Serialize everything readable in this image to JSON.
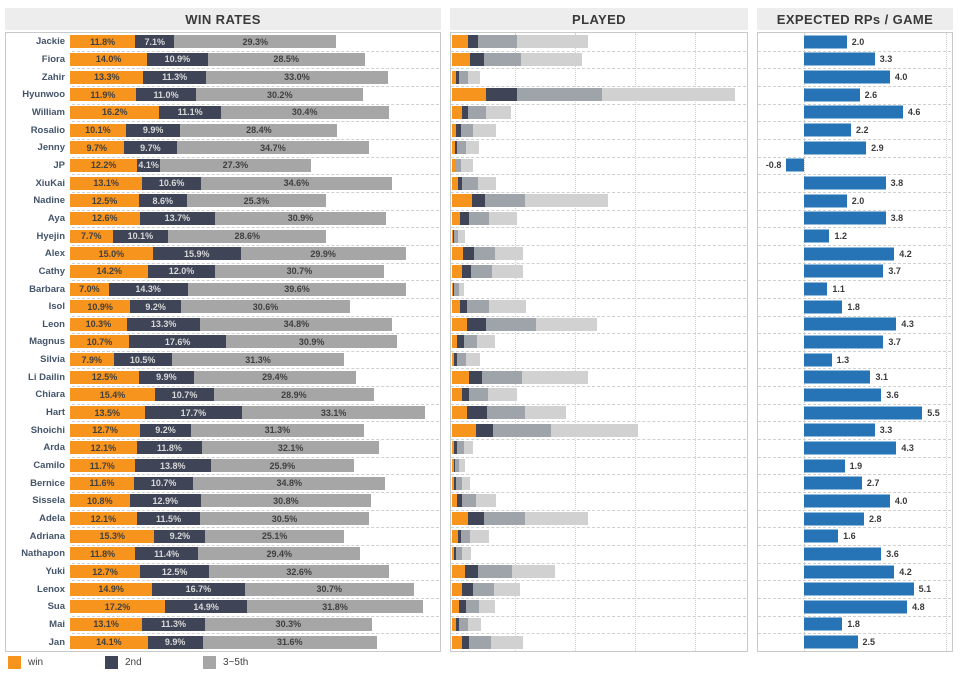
{
  "titles": {
    "win_rates": "WIN RATES",
    "played": "PLAYED",
    "rp": "EXPECTED RPs / GAME"
  },
  "legend": [
    {
      "label": "win",
      "color_key": "win"
    },
    {
      "label": "2nd",
      "color_key": "second"
    },
    {
      "label": "3~5th",
      "color_key": "r3to5"
    }
  ],
  "colors": {
    "win": "#F7941D",
    "second": "#3F4456",
    "r3to5": "#A6A6A6",
    "played_r3to5": "#9EA4A9",
    "played_rest": "#D1D1D1",
    "rp_bar": "#2674B5",
    "label_dark": "#404040",
    "label_on_dark": "#D9D9D9"
  },
  "chart_data": {
    "type": "bar",
    "orientation": "horizontal",
    "panels": [
      {
        "title": "WIN RATES",
        "stacked": true,
        "series": [
          "win",
          "2nd",
          "3~5th"
        ],
        "unit": "%",
        "xlim": [
          0,
          67
        ],
        "value_labels": true
      },
      {
        "title": "PLAYED",
        "stacked": true,
        "series": [
          "win",
          "2nd",
          "3~5th",
          "rest"
        ],
        "note": "axis unlabeled; totals estimated as percent of plot width; segments proportional to win/2nd/3~5th/rest shares",
        "gridlines_pct": [
          21.6,
          41.9,
          62.2,
          82.4
        ]
      },
      {
        "title": "EXPECTED RPs / GAME",
        "xlim": [
          -2.1,
          6.6
        ],
        "baseline_pct": 23.5,
        "unit_pct": 11.12,
        "value_labels": true
      }
    ],
    "rows": [
      {
        "name": "Jackie",
        "win": 11.8,
        "second": 7.1,
        "r3to5": 29.3,
        "played_rel": 46,
        "rp": 2.0
      },
      {
        "name": "Fiora",
        "win": 14.0,
        "second": 10.9,
        "r3to5": 28.5,
        "played_rel": 44,
        "rp": 3.3
      },
      {
        "name": "Zahir",
        "win": 13.3,
        "second": 11.3,
        "r3to5": 33.0,
        "played_rel": 9.5,
        "rp": 4.0
      },
      {
        "name": "Hyunwoo",
        "win": 11.9,
        "second": 11.0,
        "r3to5": 30.2,
        "played_rel": 96,
        "rp": 2.6
      },
      {
        "name": "William",
        "win": 16.2,
        "second": 11.1,
        "r3to5": 30.4,
        "played_rel": 20,
        "rp": 4.6
      },
      {
        "name": "Rosalio",
        "win": 10.1,
        "second": 9.9,
        "r3to5": 28.4,
        "played_rel": 15,
        "rp": 2.2
      },
      {
        "name": "Jenny",
        "win": 9.7,
        "second": 9.7,
        "r3to5": 34.7,
        "played_rel": 9,
        "rp": 2.9
      },
      {
        "name": "JP",
        "win": 12.2,
        "second": 4.1,
        "r3to5": 27.3,
        "played_rel": 7,
        "rp": -0.8
      },
      {
        "name": "XiuKai",
        "win": 13.1,
        "second": 10.6,
        "r3to5": 34.6,
        "played_rel": 15,
        "rp": 3.8
      },
      {
        "name": "Nadine",
        "win": 12.5,
        "second": 8.6,
        "r3to5": 25.3,
        "played_rel": 53,
        "rp": 2.0
      },
      {
        "name": "Aya",
        "win": 12.6,
        "second": 13.7,
        "r3to5": 30.9,
        "played_rel": 22,
        "rp": 3.8
      },
      {
        "name": "Hyejin",
        "win": 7.7,
        "second": 10.1,
        "r3to5": 28.6,
        "played_rel": 4.5,
        "rp": 1.2
      },
      {
        "name": "Alex",
        "win": 15.0,
        "second": 15.9,
        "r3to5": 29.9,
        "played_rel": 24,
        "rp": 4.2
      },
      {
        "name": "Cathy",
        "win": 14.2,
        "second": 12.0,
        "r3to5": 30.7,
        "played_rel": 24,
        "rp": 3.7
      },
      {
        "name": "Barbara",
        "win": 7.0,
        "second": 14.3,
        "r3to5": 39.6,
        "played_rel": 4,
        "rp": 1.1
      },
      {
        "name": "Isol",
        "win": 10.9,
        "second": 9.2,
        "r3to5": 30.6,
        "played_rel": 25,
        "rp": 1.8
      },
      {
        "name": "Leon",
        "win": 10.3,
        "second": 13.3,
        "r3to5": 34.8,
        "played_rel": 49,
        "rp": 4.3
      },
      {
        "name": "Magnus",
        "win": 10.7,
        "second": 17.6,
        "r3to5": 30.9,
        "played_rel": 14.5,
        "rp": 3.7
      },
      {
        "name": "Silvia",
        "win": 7.9,
        "second": 10.5,
        "r3to5": 31.3,
        "played_rel": 9.5,
        "rp": 1.3
      },
      {
        "name": "Li Dailin",
        "win": 12.5,
        "second": 9.9,
        "r3to5": 29.4,
        "played_rel": 46,
        "rp": 3.1
      },
      {
        "name": "Chiara",
        "win": 15.4,
        "second": 10.7,
        "r3to5": 28.9,
        "played_rel": 22,
        "rp": 3.6
      },
      {
        "name": "Hart",
        "win": 13.5,
        "second": 17.7,
        "r3to5": 33.1,
        "played_rel": 38.5,
        "rp": 5.5
      },
      {
        "name": "Shoichi",
        "win": 12.7,
        "second": 9.2,
        "r3to5": 31.3,
        "played_rel": 63,
        "rp": 3.3
      },
      {
        "name": "Arda",
        "win": 12.1,
        "second": 11.8,
        "r3to5": 32.1,
        "played_rel": 7,
        "rp": 4.3
      },
      {
        "name": "Camilo",
        "win": 11.7,
        "second": 13.8,
        "r3to5": 25.9,
        "played_rel": 4.5,
        "rp": 1.9
      },
      {
        "name": "Bernice",
        "win": 11.6,
        "second": 10.7,
        "r3to5": 34.8,
        "played_rel": 6,
        "rp": 2.7
      },
      {
        "name": "Sissela",
        "win": 10.8,
        "second": 12.9,
        "r3to5": 30.8,
        "played_rel": 15,
        "rp": 4.0
      },
      {
        "name": "Adela",
        "win": 12.1,
        "second": 11.5,
        "r3to5": 30.5,
        "played_rel": 46,
        "rp": 2.8
      },
      {
        "name": "Adriana",
        "win": 15.3,
        "second": 9.2,
        "r3to5": 25.1,
        "played_rel": 12.5,
        "rp": 1.6
      },
      {
        "name": "Nathapon",
        "win": 11.8,
        "second": 11.4,
        "r3to5": 29.4,
        "played_rel": 6.5,
        "rp": 3.6
      },
      {
        "name": "Yuki",
        "win": 12.7,
        "second": 12.5,
        "r3to5": 32.6,
        "played_rel": 35,
        "rp": 4.2
      },
      {
        "name": "Lenox",
        "win": 14.9,
        "second": 16.7,
        "r3to5": 30.7,
        "played_rel": 23,
        "rp": 5.1
      },
      {
        "name": "Sua",
        "win": 17.2,
        "second": 14.9,
        "r3to5": 31.8,
        "played_rel": 14.5,
        "rp": 4.8
      },
      {
        "name": "Mai",
        "win": 13.1,
        "second": 11.3,
        "r3to5": 30.3,
        "played_rel": 10,
        "rp": 1.8
      },
      {
        "name": "Jan",
        "win": 14.1,
        "second": 9.9,
        "r3to5": 31.6,
        "played_rel": 24,
        "rp": 2.5
      }
    ]
  }
}
